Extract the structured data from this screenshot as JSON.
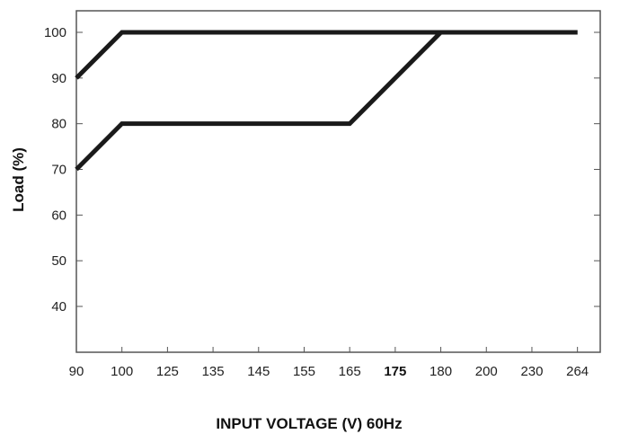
{
  "chart_data": {
    "type": "line",
    "xlabel": "INPUT VOLTAGE (V) 60Hz",
    "ylabel": "Load (%)",
    "x_ticks": [
      "90",
      "100",
      "125",
      "135",
      "145",
      "155",
      "165",
      "175",
      "180",
      "200",
      "230",
      "264"
    ],
    "x_tick_bold": "175",
    "y_ticks": [
      100,
      90,
      80,
      70,
      60,
      50,
      40
    ],
    "ylim": [
      30,
      106
    ],
    "grid": false,
    "series": [
      {
        "points": [
          [
            "90",
            90
          ],
          [
            "100",
            100
          ],
          [
            "264",
            100
          ]
        ]
      },
      {
        "points": [
          [
            "90",
            70
          ],
          [
            "100",
            80
          ],
          [
            "165",
            80
          ],
          [
            "180",
            100
          ],
          [
            "264",
            100
          ]
        ]
      }
    ],
    "line_color": "#1a1a1a"
  }
}
